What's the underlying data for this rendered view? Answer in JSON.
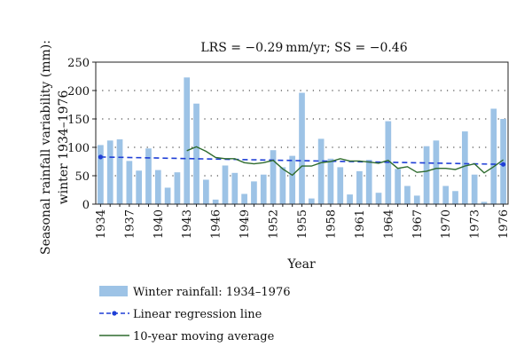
{
  "chart_data": {
    "type": "bar",
    "title": "LRS = −0.29 mm/yr; SS = −0.46",
    "xlabel": "Year",
    "ylabel_line1": "Seasonal rainfall variability (mm):",
    "ylabel_line2": "winter 1934–1976",
    "ylim": [
      0,
      250
    ],
    "yticks": [
      0,
      50,
      100,
      150,
      200,
      250
    ],
    "grid": "horizontal-dotted",
    "legend_position": "bottom",
    "x": [
      1934,
      1935,
      1936,
      1937,
      1938,
      1939,
      1940,
      1941,
      1942,
      1943,
      1944,
      1945,
      1946,
      1947,
      1948,
      1949,
      1950,
      1951,
      1952,
      1953,
      1954,
      1955,
      1956,
      1957,
      1958,
      1959,
      1960,
      1961,
      1962,
      1963,
      1964,
      1965,
      1966,
      1967,
      1968,
      1969,
      1970,
      1971,
      1972,
      1973,
      1974,
      1975,
      1976
    ],
    "xtick_labels": [
      "1934",
      "1937",
      "1940",
      "1943",
      "1946",
      "1949",
      "1952",
      "1955",
      "1958",
      "1961",
      "1964",
      "1967",
      "1970",
      "1973",
      "1976"
    ],
    "series": [
      {
        "name": "Winter rainfall: 1934–1976",
        "kind": "bar",
        "color": "#9dc3e6",
        "values": [
          104,
          112,
          114,
          76,
          59,
          98,
          60,
          29,
          56,
          223,
          177,
          43,
          8,
          68,
          55,
          18,
          40,
          52,
          95,
          65,
          85,
          196,
          10,
          115,
          80,
          65,
          17,
          58,
          78,
          20,
          146,
          62,
          32,
          15,
          102,
          112,
          32,
          23,
          128,
          52,
          4,
          168,
          150
        ]
      },
      {
        "name": "Linear regression line",
        "kind": "line",
        "color": "#1f3fd6",
        "style": "dashed-with-markers",
        "start": [
          1934,
          83
        ],
        "end": [
          1976,
          70
        ]
      },
      {
        "name": "10-year moving average",
        "kind": "line",
        "color": "#2e6b2e",
        "x": [
          1943,
          1944,
          1945,
          1946,
          1947,
          1948,
          1949,
          1950,
          1951,
          1952,
          1953,
          1954,
          1955,
          1956,
          1957,
          1958,
          1959,
          1960,
          1961,
          1962,
          1963,
          1964,
          1965,
          1966,
          1967,
          1968,
          1969,
          1970,
          1971,
          1972,
          1973,
          1974,
          1975,
          1976
        ],
        "values": [
          94,
          101,
          93,
          82,
          80,
          80,
          73,
          71,
          73,
          77,
          62,
          51,
          67,
          67,
          73,
          75,
          80,
          76,
          76,
          74,
          72,
          77,
          63,
          66,
          56,
          58,
          63,
          63,
          61,
          67,
          71,
          55,
          66,
          78
        ]
      }
    ]
  }
}
